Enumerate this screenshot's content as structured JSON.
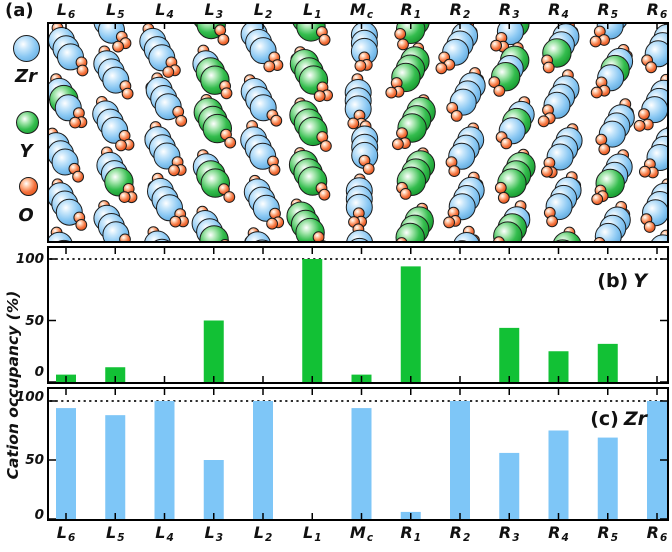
{
  "labels": {
    "panel_a": "(a)",
    "panel_b": "(b)",
    "panel_b_species": "Y",
    "panel_c": "(c)",
    "panel_c_species": "Zr",
    "ylabel": "Cation occupancy (%)"
  },
  "legend": {
    "items": [
      {
        "name": "Zr",
        "color": "#8ac8f3"
      },
      {
        "name": "Y",
        "color": "#34bd4e"
      },
      {
        "name": "O",
        "color": "#f4713d"
      }
    ]
  },
  "columns": [
    {
      "base": "L",
      "sub": "6"
    },
    {
      "base": "L",
      "sub": "5"
    },
    {
      "base": "L",
      "sub": "4"
    },
    {
      "base": "L",
      "sub": "3"
    },
    {
      "base": "L",
      "sub": "2"
    },
    {
      "base": "L",
      "sub": "1"
    },
    {
      "base": "M",
      "sub": "c"
    },
    {
      "base": "R",
      "sub": "1"
    },
    {
      "base": "R",
      "sub": "2"
    },
    {
      "base": "R",
      "sub": "3"
    },
    {
      "base": "R",
      "sub": "4"
    },
    {
      "base": "R",
      "sub": "5"
    },
    {
      "base": "R",
      "sub": "6"
    }
  ],
  "chart_data": [
    {
      "type": "bar",
      "panel": "b",
      "series_name": "Y",
      "categories": [
        "L6",
        "L5",
        "L4",
        "L3",
        "L2",
        "L1",
        "Mc",
        "R1",
        "R2",
        "R3",
        "R4",
        "R5",
        "R6"
      ],
      "values": [
        6,
        12,
        0,
        50,
        0,
        100,
        6,
        94,
        0,
        44,
        25,
        31,
        0
      ],
      "ylabel": "Cation occupancy (%)",
      "yticks": [
        0,
        50,
        100
      ],
      "ylim": [
        0,
        112
      ],
      "bar_color": "#12c135",
      "reference_line": 100,
      "legend_position": "none",
      "grid": false
    },
    {
      "type": "bar",
      "panel": "c",
      "series_name": "Zr",
      "categories": [
        "L6",
        "L5",
        "L4",
        "L3",
        "L2",
        "L1",
        "Mc",
        "R1",
        "R2",
        "R3",
        "R4",
        "R5",
        "R6"
      ],
      "values": [
        94,
        88,
        100,
        50,
        100,
        0,
        94,
        6,
        100,
        56,
        75,
        69,
        100
      ],
      "ylabel": "Cation occupancy (%)",
      "yticks": [
        0,
        50,
        100
      ],
      "ylim": [
        0,
        112
      ],
      "bar_color": "#7ec6f7",
      "reference_line": 100,
      "legend_position": "none",
      "grid": false
    }
  ],
  "structure": {
    "atom_types": [
      {
        "symbol": "Zr",
        "color": "#8ac8f3"
      },
      {
        "symbol": "Y",
        "color": "#34bd4e"
      },
      {
        "symbol": "O",
        "color": "#f4713d"
      }
    ]
  },
  "colors": {
    "bar_green": "#12c135",
    "bar_blue": "#7ec6f7",
    "oxygen_orange": "#f05a28",
    "frame": "#000000",
    "text": "#111111"
  }
}
